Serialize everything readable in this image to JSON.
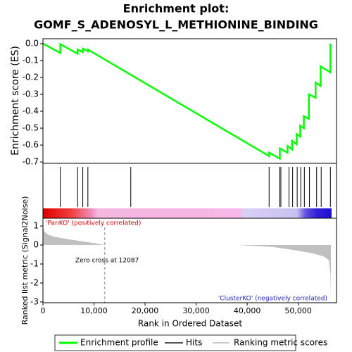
{
  "chart_data": [
    {
      "type": "line",
      "title": [
        "Enrichment plot:",
        "GOMF_S_ADENOSYL_L_METHIONINE_BINDING"
      ],
      "ylabel": "Enrichment score (ES)",
      "xlim": [
        0,
        57500
      ],
      "ylim": [
        -0.708,
        0.029
      ],
      "yticks": [
        {
          "value": 0,
          "label": "0.0"
        },
        -0.1,
        -0.2,
        -0.3,
        -0.4,
        -0.5,
        -0.6,
        -0.7
      ],
      "series": [
        {
          "name": "Enrichment profile",
          "color": "#00ff00",
          "x": [
            0,
            3400,
            3400,
            6800,
            6800,
            7800,
            7800,
            8800,
            8800,
            44300,
            44300,
            46400,
            46400,
            47900,
            47900,
            48800,
            48800,
            49700,
            49700,
            50400,
            50400,
            51100,
            51100,
            52100,
            52100,
            53400,
            53400,
            54400,
            54400,
            56300,
            56300
          ],
          "values": [
            0,
            -0.055,
            -0.003,
            -0.06,
            -0.035,
            -0.05,
            -0.03,
            -0.045,
            -0.035,
            -0.665,
            -0.645,
            -0.68,
            -0.62,
            -0.645,
            -0.605,
            -0.625,
            -0.575,
            -0.595,
            -0.535,
            -0.55,
            -0.485,
            -0.5,
            -0.43,
            -0.445,
            -0.3,
            -0.32,
            -0.23,
            -0.25,
            -0.135,
            -0.17,
            0.0
          ]
        }
      ],
      "hits_name": "Hits",
      "hits": [
        3400,
        6800,
        7800,
        8800,
        17200,
        44300,
        46400,
        46600,
        48200,
        48900,
        49800,
        50500,
        51200,
        52200,
        53600,
        54500,
        56300
      ]
    },
    {
      "type": "area",
      "xlabel": "Rank in Ordered Dataset",
      "ylabel": "Ranked list metric (Signal2Noise)",
      "xlim": [
        0,
        57500
      ],
      "ylim": [
        -3.04,
        1.41
      ],
      "yticks": [
        1,
        0,
        -1,
        -2,
        -3
      ],
      "xticks": [
        0,
        {
          "value": 10000,
          "label": "10,000"
        },
        {
          "value": 20000,
          "label": "20,000"
        },
        {
          "value": 30000,
          "label": "30,000"
        },
        {
          "value": 40000,
          "label": "40,000"
        },
        {
          "value": 50000,
          "label": "50,000"
        }
      ],
      "series": [
        {
          "name": "Ranking metric scores",
          "color": "#c0c0c0",
          "x": [
            0,
            300,
            1000,
            2000,
            3500,
            5000,
            7500,
            10000,
            12087,
            20000,
            38000,
            45000,
            50000,
            53000,
            55000,
            56000,
            56300,
            56400
          ],
          "values": [
            0.95,
            0.7,
            0.55,
            0.45,
            0.37,
            0.3,
            0.2,
            0.1,
            0,
            0,
            0,
            -0.1,
            -0.3,
            -0.45,
            -0.6,
            -0.8,
            -1.5,
            -2.85
          ]
        }
      ],
      "annotations": [
        "'PanKO' (positively correlated)",
        "'ClusterKO' (negatively correlated)"
      ],
      "zero_cross": {
        "value": 12087,
        "label": "Zero cross at 12087"
      }
    }
  ]
}
